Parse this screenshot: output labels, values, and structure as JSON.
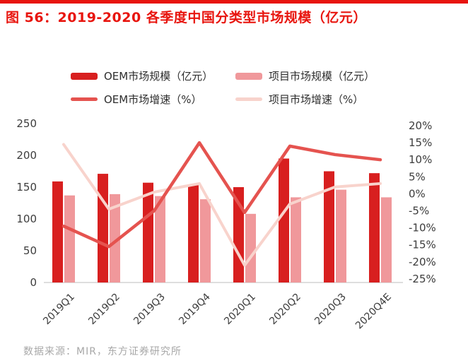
{
  "page": {
    "title": "图 56：2019-2020 各季度中国分类型市场规模（亿元）",
    "source": "数据来源：MIR，东方证券研究所"
  },
  "colors": {
    "accent_red": "#e8150e",
    "oem_bar": "#d81f1f",
    "project_bar": "#f0989b",
    "oem_line": "#e5534f",
    "project_line": "#f8d3cc",
    "axis_text": "#3c3c3c",
    "baseline": "#c9c9c9",
    "source_text": "#a8a8a8",
    "legend_text": "#2e2e2e"
  },
  "legend": [
    {
      "label": "OEM市场规模（亿元）",
      "kind": "bar",
      "color_key": "oem_bar"
    },
    {
      "label": "项目市场规模（亿元）",
      "kind": "bar",
      "color_key": "project_bar"
    },
    {
      "label": "OEM市场增速（%）",
      "kind": "line",
      "color_key": "oem_line"
    },
    {
      "label": "项目市场增速（%）",
      "kind": "line",
      "color_key": "project_line"
    }
  ],
  "chart_data": {
    "type": "bar",
    "subtype": "grouped-bars-with-lines-combo",
    "title": "2019-2020 各季度中国分类型市场规模（亿元）",
    "categories": [
      "2019Q1",
      "2019Q2",
      "2019Q3",
      "2019Q4",
      "2020Q1",
      "2020Q2",
      "2020Q3",
      "2020Q4E"
    ],
    "series": [
      {
        "name": "OEM市场规模（亿元）",
        "type": "bar",
        "axis": "left",
        "color_key": "oem_bar",
        "values": [
          159,
          171,
          157,
          153,
          150,
          195,
          175,
          172
        ]
      },
      {
        "name": "项目市场规模（亿元）",
        "type": "bar",
        "axis": "left",
        "color_key": "project_bar",
        "values": [
          137,
          139,
          136,
          131,
          108,
          134,
          146,
          134
        ]
      },
      {
        "name": "OEM市场增速（%）",
        "type": "line",
        "axis": "right",
        "color_key": "oem_line",
        "values": [
          -9.5,
          -15.5,
          -5,
          15,
          -5.5,
          14,
          11.5,
          10
        ]
      },
      {
        "name": "项目市场增速（%）",
        "type": "line",
        "axis": "right",
        "color_key": "project_line",
        "values": [
          14.5,
          -4.5,
          0.5,
          3,
          -21,
          -3,
          2,
          3
        ]
      }
    ],
    "left_axis": {
      "ticks": [
        0,
        50,
        100,
        150,
        200,
        250
      ],
      "range": [
        0,
        250
      ],
      "unit": "亿元"
    },
    "right_axis": {
      "ticks": [
        20,
        15,
        10,
        5,
        0,
        -5,
        -10,
        -15,
        -20,
        -25
      ],
      "range": [
        -25,
        20
      ],
      "unit": "%"
    },
    "grid": false,
    "legend_position": "top"
  }
}
